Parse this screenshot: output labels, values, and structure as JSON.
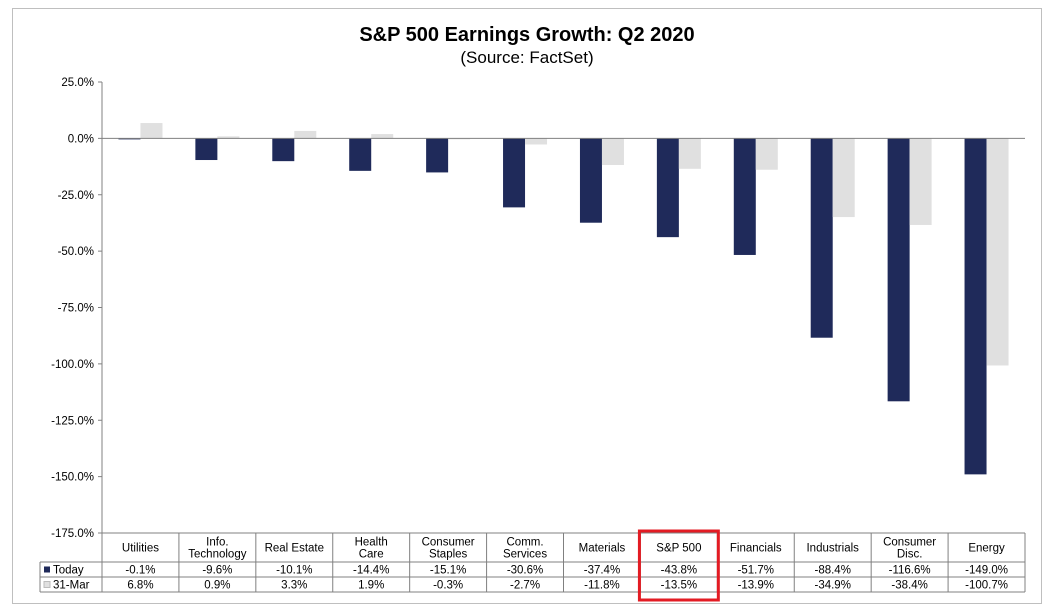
{
  "chart_data": {
    "type": "bar",
    "title": "S&P 500 Earnings Growth: Q2 2020",
    "subtitle": "(Source: FactSet)",
    "categories": [
      [
        "Utilities"
      ],
      [
        "Info.",
        "Technology"
      ],
      [
        "Real Estate"
      ],
      [
        "Health",
        "Care"
      ],
      [
        "Consumer",
        "Staples"
      ],
      [
        "Comm.",
        "Services"
      ],
      [
        "Materials"
      ],
      [
        "S&P 500"
      ],
      [
        "Financials"
      ],
      [
        "Industrials"
      ],
      [
        "Consumer",
        "Disc."
      ],
      [
        "Energy"
      ]
    ],
    "series": [
      {
        "name": "Today",
        "color": "#1f2a5a",
        "values": [
          -0.1,
          -9.6,
          -10.1,
          -14.4,
          -15.1,
          -30.6,
          -37.4,
          -43.8,
          -51.7,
          -88.4,
          -116.6,
          -149.0
        ],
        "labels": [
          "-0.1%",
          "-9.6%",
          "-10.1%",
          "-14.4%",
          "-15.1%",
          "-30.6%",
          "-37.4%",
          "-43.8%",
          "-51.7%",
          "-88.4%",
          "-116.6%",
          "-149.0%"
        ]
      },
      {
        "name": "31-Mar",
        "color": "#e0e0e0",
        "values": [
          6.8,
          0.9,
          3.3,
          1.9,
          -0.3,
          -2.7,
          -11.8,
          -13.5,
          -13.9,
          -34.9,
          -38.4,
          -100.7
        ],
        "labels": [
          "6.8%",
          "0.9%",
          "3.3%",
          "1.9%",
          "-0.3%",
          "-2.7%",
          "-11.8%",
          "-13.5%",
          "-13.9%",
          "-34.9%",
          "-38.4%",
          "-100.7%"
        ]
      }
    ],
    "ylim": [
      -175,
      25
    ],
    "yticks": [
      25,
      0,
      -25,
      -50,
      -75,
      -100,
      -125,
      -150,
      -175
    ],
    "ytick_labels": [
      "25.0%",
      "0.0%",
      "-25.0%",
      "-50.0%",
      "-75.0%",
      "-100.0%",
      "-125.0%",
      "-150.0%",
      "-175.0%"
    ],
    "highlight_category_index": 7,
    "highlight_color": "#e31b23",
    "legend": "data-table"
  }
}
